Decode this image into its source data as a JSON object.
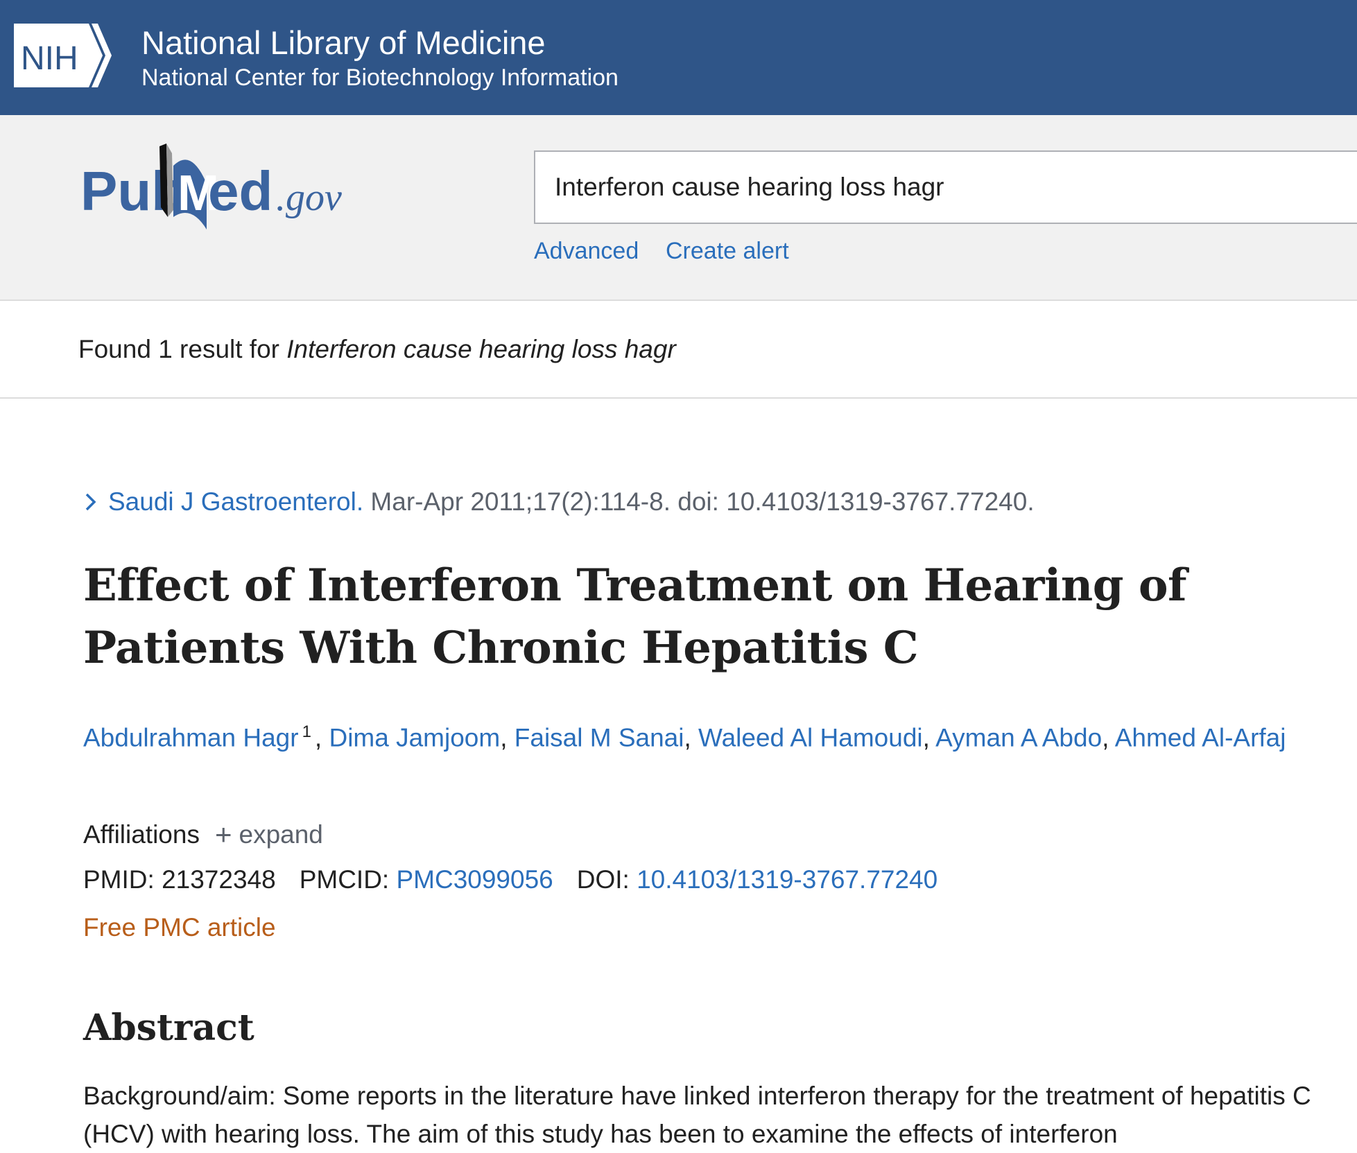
{
  "nih": {
    "logo_text": "NIH",
    "title": "National Library of Medicine",
    "subtitle": "National Center for Biotechnology Information"
  },
  "pubmed": {
    "logo_text": "PubMed.gov",
    "search_value": "Interferon cause hearing loss hagr",
    "advanced_label": "Advanced",
    "create_alert_label": "Create alert"
  },
  "results": {
    "found_prefix": "Found 1 result for ",
    "query": "Interferon cause hearing loss hagr"
  },
  "article": {
    "journal": "Saudi J Gastroenterol.",
    "citation": " Mar-Apr 2011;17(2):114-8. doi: 10.4103/1319-3767.77240.",
    "title": "Effect of Interferon Treatment on Hearing of Patients With Chronic Hepatitis C",
    "authors": [
      {
        "name": "Abdulrahman Hagr",
        "sup": "1"
      },
      {
        "name": "Dima Jamjoom"
      },
      {
        "name": "Faisal M Sanai"
      },
      {
        "name": "Waleed Al Hamoudi"
      },
      {
        "name": "Ayman A Abdo"
      },
      {
        "name": "Ahmed Al-Arfaj"
      }
    ],
    "affiliations_label": "Affiliations",
    "expand_label": "expand",
    "pmid_label": "PMID: ",
    "pmid": "21372348",
    "pmcid_label": "PMCID: ",
    "pmcid": "PMC3099056",
    "doi_label": "DOI: ",
    "doi": "10.4103/1319-3767.77240",
    "free_pmc": "Free PMC article",
    "abstract_heading": "Abstract",
    "abstract_text": "Background/aim: Some reports in the literature have linked interferon therapy for the treatment of hepatitis C (HCV) with hearing loss. The aim of this study has been to examine the effects of interferon"
  },
  "colors": {
    "nih_blue": "#2f5588",
    "link": "#2a6ebb",
    "free_pmc": "#b85e1a",
    "band": "#f1f1f1"
  }
}
